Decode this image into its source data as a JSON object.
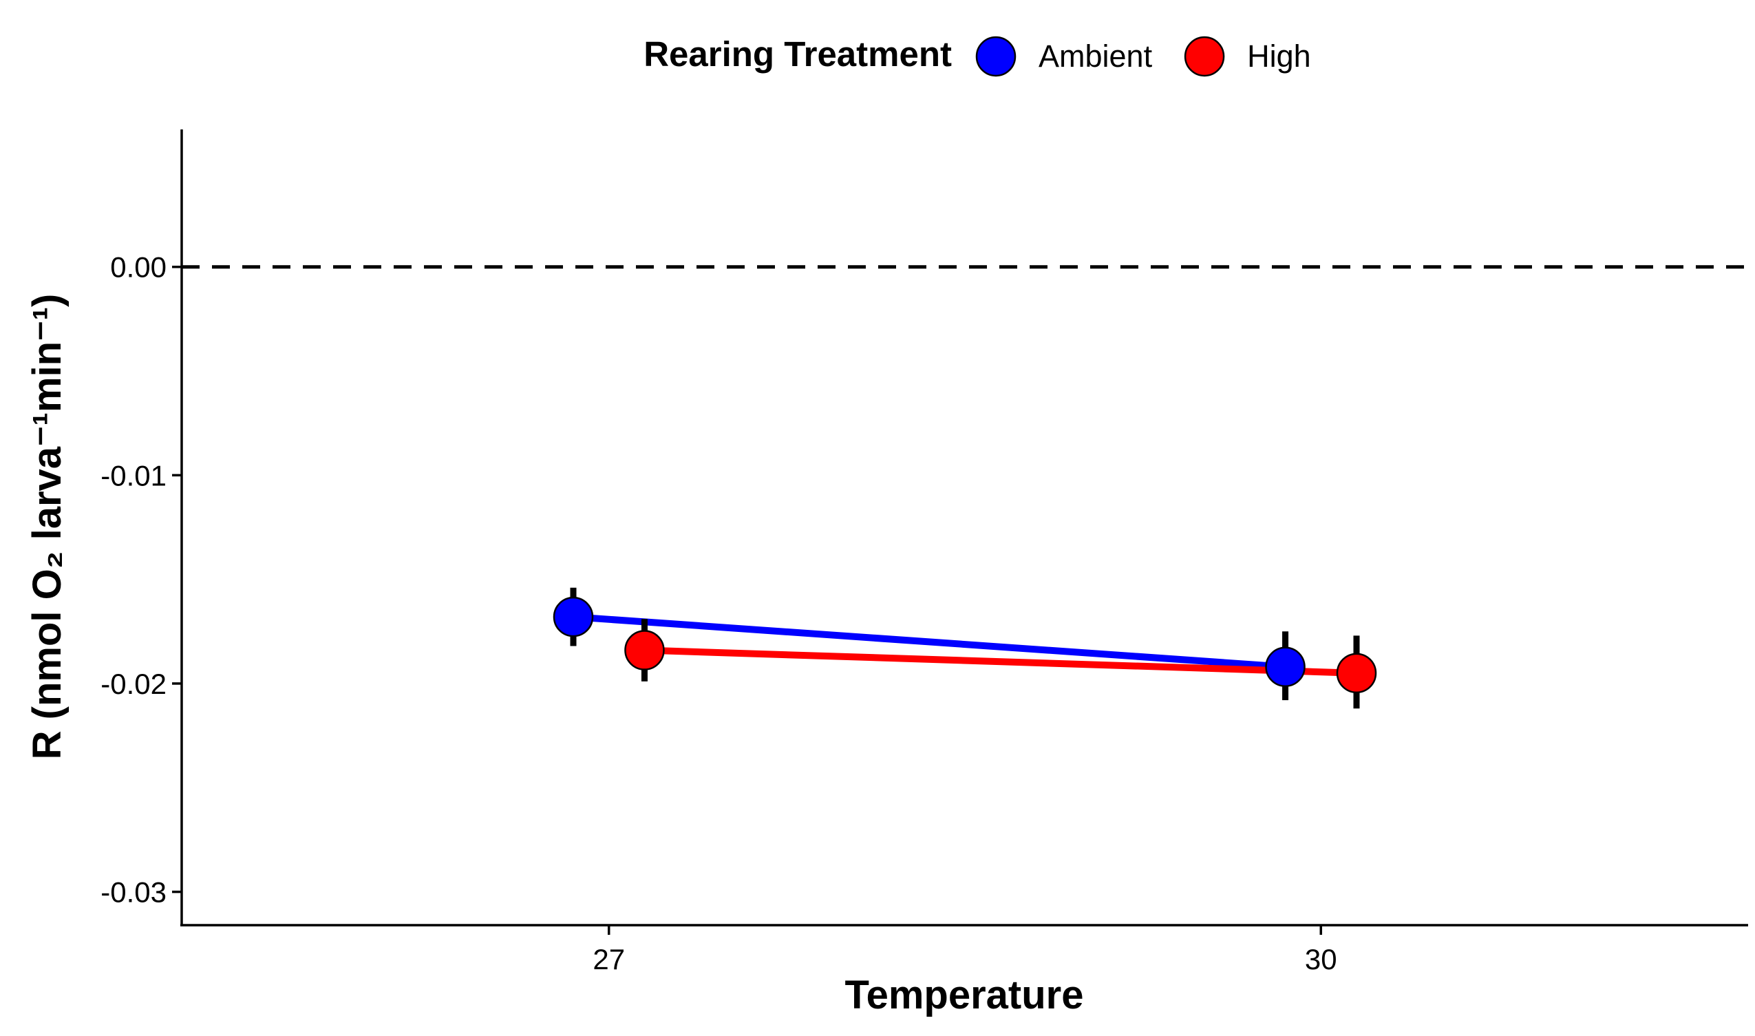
{
  "chart_data": {
    "type": "line",
    "xlabel": "Temperature",
    "ylabel": "R (nmol O₂ larva⁻¹min⁻¹)",
    "legend_title": "Rearing Treatment",
    "legend_position": "top",
    "x_ticks": [
      "27",
      "30"
    ],
    "y_ticks": [
      {
        "value": 0.0,
        "label": "0.00"
      },
      {
        "value": -0.01,
        "label": "-0.01"
      },
      {
        "value": -0.02,
        "label": "-0.02"
      },
      {
        "value": -0.03,
        "label": "-0.03"
      }
    ],
    "xlim": [
      25.2,
      31.8
    ],
    "ylim": [
      -0.0316,
      0.0066
    ],
    "reference_line": {
      "y": 0.0,
      "style": "dashed",
      "color": "#000000"
    },
    "grid": false,
    "series": [
      {
        "name": "Ambient",
        "color": "#0000ff",
        "dodge": -0.15,
        "points": [
          {
            "x": 27,
            "y": -0.0168,
            "ymin": -0.0182,
            "ymax": -0.0154
          },
          {
            "x": 30,
            "y": -0.0192,
            "ymin": -0.0208,
            "ymax": -0.0175
          }
        ]
      },
      {
        "name": "High",
        "color": "#ff0000",
        "dodge": 0.15,
        "points": [
          {
            "x": 27,
            "y": -0.0184,
            "ymin": -0.0199,
            "ymax": -0.0169
          },
          {
            "x": 30,
            "y": -0.0195,
            "ymin": -0.0212,
            "ymax": -0.0177
          }
        ]
      }
    ]
  }
}
